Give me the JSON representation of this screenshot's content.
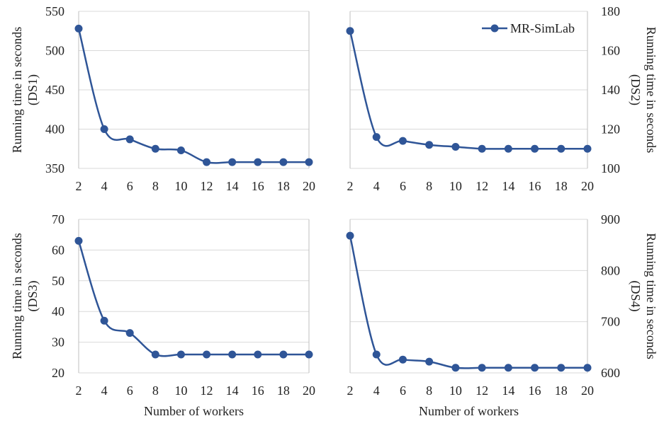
{
  "chart_data": [
    {
      "type": "line",
      "x": [
        2,
        4,
        6,
        8,
        10,
        12,
        14,
        16,
        18,
        20
      ],
      "series": [
        {
          "name": "MR-SimLab",
          "values": [
            528,
            400,
            387,
            375,
            373,
            358,
            358,
            358,
            358,
            358
          ]
        }
      ],
      "ylim": [
        350,
        550
      ],
      "yticks": [
        350,
        400,
        450,
        500,
        550
      ],
      "xticks": [
        2,
        4,
        6,
        8,
        10,
        12,
        14,
        16,
        18,
        20
      ],
      "ylabel": [
        "Running time  in seconds",
        "(DS1)"
      ],
      "xlabel": "",
      "yaxis_side": "left",
      "grid": true
    },
    {
      "type": "line",
      "x": [
        2,
        4,
        6,
        8,
        10,
        12,
        14,
        16,
        18,
        20
      ],
      "series": [
        {
          "name": "MR-SimLab",
          "values": [
            170,
            116,
            114,
            112,
            111,
            110,
            110,
            110,
            110,
            110
          ]
        }
      ],
      "ylim": [
        100,
        180
      ],
      "yticks": [
        100,
        120,
        140,
        160,
        180
      ],
      "xticks": [
        2,
        4,
        6,
        8,
        10,
        12,
        14,
        16,
        18,
        20
      ],
      "ylabel": [
        "Running time  in seconds",
        "(DS2)"
      ],
      "xlabel": "",
      "yaxis_side": "right",
      "grid": true,
      "legend": {
        "label": "MR-SimLab",
        "position": "top-right"
      }
    },
    {
      "type": "line",
      "x": [
        2,
        4,
        6,
        8,
        10,
        12,
        14,
        16,
        18,
        20
      ],
      "series": [
        {
          "name": "MR-SimLab",
          "values": [
            63,
            37,
            33,
            26,
            26,
            26,
            26,
            26,
            26,
            26
          ]
        }
      ],
      "ylim": [
        20,
        70
      ],
      "yticks": [
        20,
        30,
        40,
        50,
        60,
        70
      ],
      "xticks": [
        2,
        4,
        6,
        8,
        10,
        12,
        14,
        16,
        18,
        20
      ],
      "ylabel": [
        "Running time  in seconds",
        "(DS3)"
      ],
      "xlabel": "Number of workers",
      "yaxis_side": "left",
      "grid": true
    },
    {
      "type": "line",
      "x": [
        2,
        4,
        6,
        8,
        10,
        12,
        14,
        16,
        18,
        20
      ],
      "series": [
        {
          "name": "MR-SimLab",
          "values": [
            868,
            636,
            626,
            622,
            610,
            610,
            610,
            610,
            610,
            610
          ]
        }
      ],
      "ylim": [
        600,
        900
      ],
      "yticks": [
        600,
        700,
        800,
        900
      ],
      "xticks": [
        2,
        4,
        6,
        8,
        10,
        12,
        14,
        16,
        18,
        20
      ],
      "ylabel": [
        "Running time  in seconds",
        "(DS4)"
      ],
      "xlabel": "Number of workers",
      "yaxis_side": "right",
      "grid": true
    }
  ],
  "colors": {
    "series": "#2f5597",
    "grid": "#d9d9d9",
    "axis": "#bfbfbf"
  }
}
